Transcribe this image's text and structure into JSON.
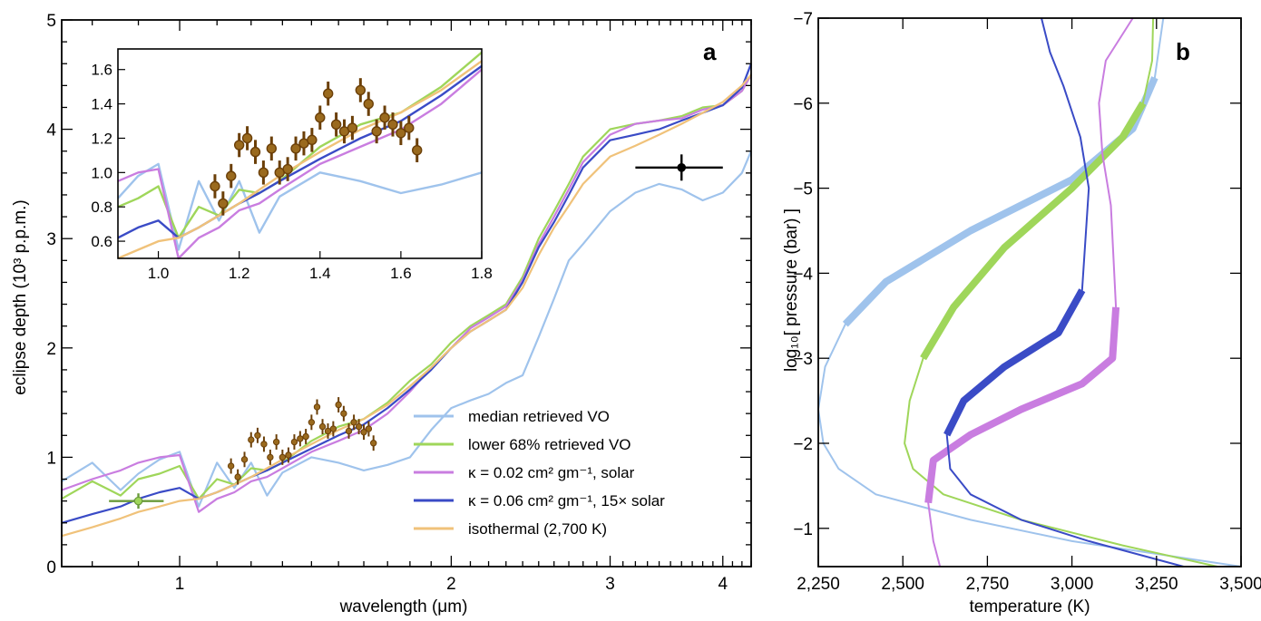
{
  "panel_a": {
    "letter": "a",
    "xlabel": "wavelength (μm)",
    "ylabel": "eclipse depth (10³ p.p.m.)",
    "xticks": [
      "1",
      "2",
      "3",
      "4"
    ],
    "yticks": [
      "0",
      "1",
      "2",
      "3",
      "4",
      "5"
    ],
    "legend": [
      "median retrieved VO",
      "lower 68% retrieved VO",
      "κ = 0.02 cm² gm⁻¹, solar",
      "κ = 0.06 cm² gm⁻¹, 15× solar",
      "isothermal (2,700 K)"
    ],
    "inset_xticks": [
      "1.0",
      "1.2",
      "1.4",
      "1.6",
      "1.8"
    ],
    "inset_yticks": [
      "0.6",
      "0.8",
      "1.0",
      "1.2",
      "1.4",
      "1.6"
    ]
  },
  "panel_b": {
    "letter": "b",
    "xlabel": "temperature (K)",
    "ylabel": "log₁₀[ pressure (bar) ]",
    "xticks": [
      "2,250",
      "2,500",
      "2,750",
      "3,000",
      "3,250",
      "3,500"
    ],
    "yticks": [
      "−1",
      "−2",
      "−3",
      "−4",
      "−5",
      "−6",
      "−7"
    ]
  },
  "colors": {
    "median": "#9fc3ec",
    "lower68": "#9fd65a",
    "solar": "#c97de0",
    "solar15": "#3a4bc6",
    "isothermal": "#f0c27a",
    "data_fill": "#9a6a1e",
    "data_err": "#6b3f08",
    "green_point": "#6a9a3a",
    "black_point": "#000000"
  },
  "chart_data": [
    {
      "type": "line",
      "panel": "a",
      "xscale": "log",
      "xlim": [
        0.74,
        4.3
      ],
      "ylim": [
        0,
        5
      ],
      "series": [
        {
          "name": "median retrieved VO",
          "x": [
            0.74,
            0.8,
            0.86,
            0.9,
            0.95,
            1.0,
            1.05,
            1.1,
            1.15,
            1.2,
            1.25,
            1.3,
            1.4,
            1.5,
            1.6,
            1.7,
            1.8,
            1.9,
            2.0,
            2.1,
            2.2,
            2.3,
            2.4,
            2.5,
            2.6,
            2.7,
            2.8,
            3.0,
            3.2,
            3.4,
            3.6,
            3.8,
            4.0,
            4.2,
            4.3
          ],
          "y": [
            0.78,
            0.95,
            0.7,
            0.85,
            0.98,
            1.05,
            0.55,
            0.95,
            0.72,
            0.95,
            0.65,
            0.86,
            1.0,
            0.95,
            0.88,
            0.93,
            1.0,
            1.25,
            1.45,
            1.52,
            1.58,
            1.68,
            1.75,
            2.1,
            2.45,
            2.8,
            2.95,
            3.25,
            3.42,
            3.5,
            3.45,
            3.35,
            3.42,
            3.6,
            3.8
          ]
        },
        {
          "name": "lower 68% retrieved VO",
          "x": [
            0.74,
            0.8,
            0.86,
            0.9,
            0.95,
            1.0,
            1.05,
            1.1,
            1.15,
            1.2,
            1.25,
            1.3,
            1.4,
            1.5,
            1.6,
            1.7,
            1.8,
            1.9,
            2.0,
            2.1,
            2.2,
            2.3,
            2.4,
            2.5,
            2.6,
            2.7,
            2.8,
            3.0,
            3.2,
            3.4,
            3.6,
            3.8,
            4.0,
            4.2,
            4.3
          ],
          "y": [
            0.62,
            0.78,
            0.65,
            0.8,
            0.85,
            0.92,
            0.62,
            0.8,
            0.75,
            0.9,
            0.88,
            0.95,
            1.15,
            1.28,
            1.35,
            1.5,
            1.7,
            1.85,
            2.05,
            2.2,
            2.3,
            2.4,
            2.65,
            3.0,
            3.25,
            3.5,
            3.75,
            4.0,
            4.05,
            4.08,
            4.12,
            4.2,
            4.22,
            4.35,
            4.5
          ]
        },
        {
          "name": "κ = 0.02 cm² gm⁻¹, solar",
          "x": [
            0.74,
            0.8,
            0.86,
            0.9,
            0.95,
            1.0,
            1.05,
            1.1,
            1.15,
            1.2,
            1.25,
            1.3,
            1.4,
            1.5,
            1.6,
            1.7,
            1.8,
            1.9,
            2.0,
            2.1,
            2.2,
            2.3,
            2.4,
            2.5,
            2.6,
            2.7,
            2.8,
            3.0,
            3.2,
            3.4,
            3.6,
            3.8,
            4.0,
            4.2,
            4.3
          ],
          "y": [
            0.7,
            0.8,
            0.88,
            0.95,
            1.0,
            1.02,
            0.5,
            0.62,
            0.68,
            0.78,
            0.82,
            0.9,
            1.05,
            1.15,
            1.25,
            1.4,
            1.6,
            1.82,
            2.0,
            2.18,
            2.28,
            2.38,
            2.62,
            2.95,
            3.2,
            3.45,
            3.7,
            3.95,
            4.05,
            4.08,
            4.1,
            4.18,
            4.22,
            4.35,
            4.5
          ]
        },
        {
          "name": "κ = 0.06 cm² gm⁻¹, 15× solar",
          "x": [
            0.74,
            0.8,
            0.86,
            0.9,
            0.95,
            1.0,
            1.05,
            1.1,
            1.15,
            1.2,
            1.25,
            1.3,
            1.4,
            1.5,
            1.6,
            1.7,
            1.8,
            1.9,
            2.0,
            2.1,
            2.2,
            2.3,
            2.4,
            2.5,
            2.6,
            2.7,
            2.8,
            3.0,
            3.2,
            3.4,
            3.6,
            3.8,
            4.0,
            4.2,
            4.3
          ],
          "y": [
            0.4,
            0.48,
            0.55,
            0.62,
            0.68,
            0.72,
            0.62,
            0.68,
            0.75,
            0.82,
            0.88,
            0.95,
            1.08,
            1.2,
            1.3,
            1.45,
            1.62,
            1.8,
            2.0,
            2.15,
            2.25,
            2.35,
            2.6,
            2.92,
            3.15,
            3.4,
            3.65,
            3.9,
            3.95,
            4.0,
            4.08,
            4.15,
            4.22,
            4.38,
            4.6
          ]
        },
        {
          "name": "isothermal (2,700 K)",
          "x": [
            0.74,
            0.8,
            0.86,
            0.9,
            0.95,
            1.0,
            1.05,
            1.1,
            1.15,
            1.2,
            1.25,
            1.3,
            1.4,
            1.5,
            1.6,
            1.7,
            1.8,
            1.9,
            2.0,
            2.1,
            2.2,
            2.3,
            2.4,
            2.5,
            2.6,
            2.7,
            2.8,
            3.0,
            3.2,
            3.4,
            3.6,
            3.8,
            4.0,
            4.2,
            4.3
          ],
          "y": [
            0.28,
            0.36,
            0.44,
            0.5,
            0.55,
            0.6,
            0.62,
            0.68,
            0.75,
            0.82,
            0.9,
            0.98,
            1.12,
            1.25,
            1.35,
            1.48,
            1.65,
            1.82,
            2.0,
            2.15,
            2.25,
            2.35,
            2.55,
            2.85,
            3.1,
            3.3,
            3.5,
            3.75,
            3.85,
            3.95,
            4.05,
            4.15,
            4.25,
            4.4,
            4.5
          ]
        }
      ],
      "points": [
        {
          "x": 1.14,
          "y": 0.92,
          "yerr": 0.07
        },
        {
          "x": 1.16,
          "y": 0.82,
          "yerr": 0.07
        },
        {
          "x": 1.18,
          "y": 0.98,
          "yerr": 0.07
        },
        {
          "x": 1.2,
          "y": 1.16,
          "yerr": 0.07
        },
        {
          "x": 1.22,
          "y": 1.2,
          "yerr": 0.07
        },
        {
          "x": 1.24,
          "y": 1.12,
          "yerr": 0.07
        },
        {
          "x": 1.26,
          "y": 1.0,
          "yerr": 0.07
        },
        {
          "x": 1.28,
          "y": 1.14,
          "yerr": 0.07
        },
        {
          "x": 1.3,
          "y": 1.0,
          "yerr": 0.07
        },
        {
          "x": 1.32,
          "y": 1.02,
          "yerr": 0.07
        },
        {
          "x": 1.34,
          "y": 1.14,
          "yerr": 0.07
        },
        {
          "x": 1.36,
          "y": 1.17,
          "yerr": 0.07
        },
        {
          "x": 1.38,
          "y": 1.19,
          "yerr": 0.07
        },
        {
          "x": 1.4,
          "y": 1.32,
          "yerr": 0.07
        },
        {
          "x": 1.42,
          "y": 1.46,
          "yerr": 0.07
        },
        {
          "x": 1.44,
          "y": 1.28,
          "yerr": 0.07
        },
        {
          "x": 1.46,
          "y": 1.24,
          "yerr": 0.07
        },
        {
          "x": 1.48,
          "y": 1.26,
          "yerr": 0.07
        },
        {
          "x": 1.5,
          "y": 1.48,
          "yerr": 0.07
        },
        {
          "x": 1.52,
          "y": 1.4,
          "yerr": 0.07
        },
        {
          "x": 1.54,
          "y": 1.24,
          "yerr": 0.07
        },
        {
          "x": 1.56,
          "y": 1.32,
          "yerr": 0.07
        },
        {
          "x": 1.58,
          "y": 1.28,
          "yerr": 0.07
        },
        {
          "x": 1.6,
          "y": 1.23,
          "yerr": 0.07
        },
        {
          "x": 1.62,
          "y": 1.26,
          "yerr": 0.07
        },
        {
          "x": 1.64,
          "y": 1.13,
          "yerr": 0.07
        }
      ],
      "photometry": [
        {
          "x": 0.9,
          "y": 0.6,
          "xerr": [
            0.835,
            0.96
          ],
          "yerr": 0.07
        },
        {
          "x": 3.6,
          "y": 3.65,
          "xerr": [
            3.2,
            4.0
          ],
          "yerr": 0.12
        }
      ],
      "inset": {
        "xlim": [
          0.9,
          1.8
        ],
        "ylim": [
          0.5,
          1.72
        ]
      },
      "grid": false,
      "legend_position": "bottom-right"
    },
    {
      "type": "line",
      "panel": "b",
      "xlim": [
        2250,
        3500
      ],
      "ylim": [
        -0.55,
        -7.0
      ],
      "series": [
        {
          "name": "median retrieved VO",
          "temperature": [
            3270,
            3245,
            3180,
            3000,
            2700,
            2450,
            2330,
            2270,
            2250,
            2265,
            2310,
            2420,
            2700,
            3000,
            3500
          ],
          "log_pressure": [
            -7.0,
            -6.3,
            -5.7,
            -5.1,
            -4.5,
            -3.9,
            -3.4,
            -2.9,
            -2.4,
            -2.0,
            -1.7,
            -1.4,
            -1.1,
            -0.85,
            -0.55
          ]
        },
        {
          "name": "lower 68% retrieved VO",
          "temperature": [
            3240,
            3237,
            3210,
            3150,
            3000,
            2800,
            2650,
            2560,
            2520,
            2505,
            2530,
            2620,
            2850,
            3150,
            3430
          ],
          "log_pressure": [
            -7.0,
            -6.5,
            -6.0,
            -5.6,
            -5.0,
            -4.3,
            -3.6,
            -3.0,
            -2.5,
            -2.0,
            -1.7,
            -1.4,
            -1.1,
            -0.8,
            -0.55
          ]
        },
        {
          "name": "κ = 0.02 cm² gm⁻¹, solar",
          "temperature": [
            3180,
            3100,
            3080,
            3090,
            3115,
            3130,
            3120,
            3030,
            2850,
            2700,
            2590,
            2575,
            2590,
            2610
          ],
          "log_pressure": [
            -7.0,
            -6.5,
            -6.0,
            -5.4,
            -4.8,
            -3.6,
            -3.0,
            -2.7,
            -2.4,
            -2.1,
            -1.8,
            -1.3,
            -0.85,
            -0.55
          ]
        },
        {
          "name": "κ = 0.06 cm² gm⁻¹, 15× solar",
          "temperature": [
            2910,
            2935,
            2975,
            3025,
            3050,
            3040,
            3030,
            2960,
            2800,
            2680,
            2630,
            2640,
            2700,
            2850,
            3050,
            3330
          ],
          "log_pressure": [
            -7.0,
            -6.6,
            -6.2,
            -5.6,
            -5.0,
            -4.4,
            -3.8,
            -3.3,
            -2.9,
            -2.5,
            -2.1,
            -1.7,
            -1.4,
            -1.1,
            -0.85,
            -0.55
          ]
        }
      ],
      "grid": false
    }
  ]
}
